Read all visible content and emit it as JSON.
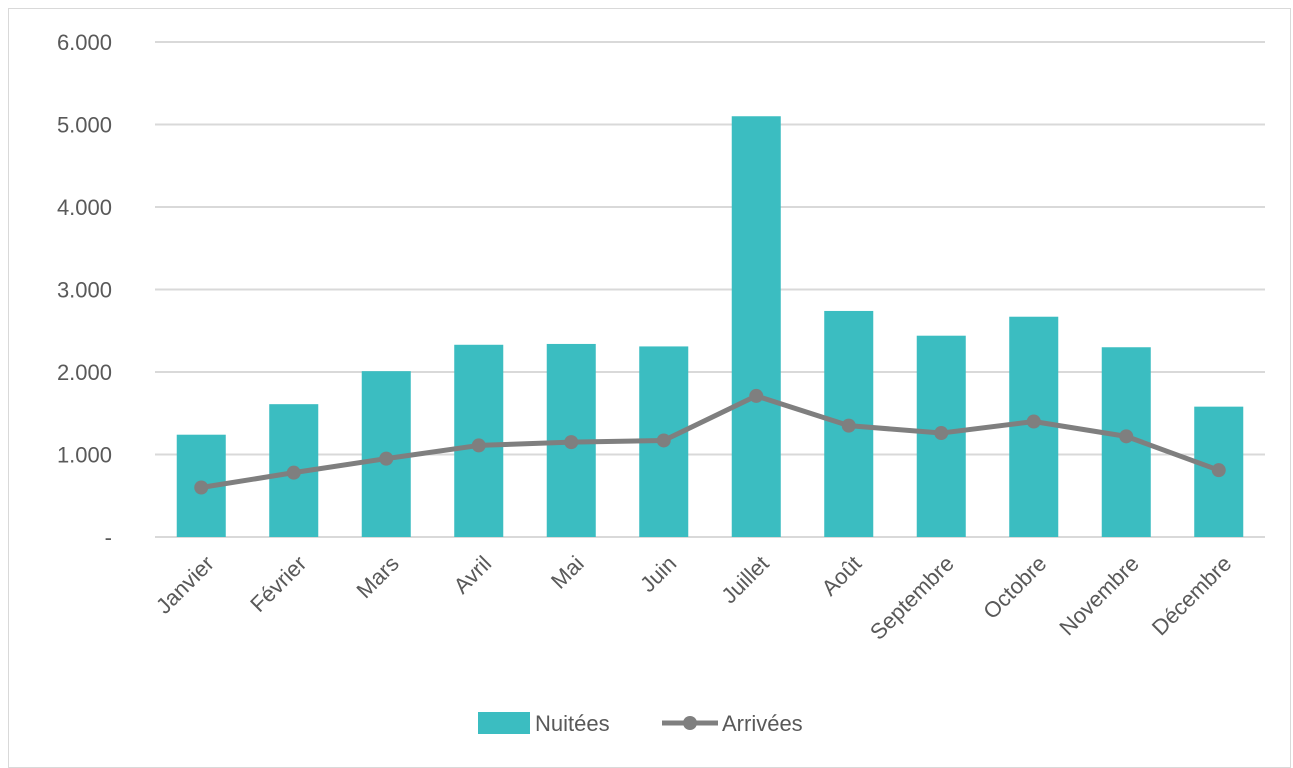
{
  "chart_data": {
    "type": "bar",
    "categories": [
      "Janvier",
      "Février",
      "Mars",
      "Avril",
      "Mai",
      "Juin",
      "Juillet",
      "Août",
      "Septembre",
      "Octobre",
      "Novembre",
      "Décembre"
    ],
    "series": [
      {
        "name": "Nuitées",
        "type": "bar",
        "color": "#3bbdc1",
        "values": [
          1240,
          1610,
          2010,
          2330,
          2340,
          2310,
          5100,
          2740,
          2440,
          2670,
          2300,
          1580
        ]
      },
      {
        "name": "Arrivées",
        "type": "line",
        "color": "#7f7f7f",
        "values": [
          600,
          780,
          950,
          1110,
          1150,
          1170,
          1710,
          1350,
          1260,
          1400,
          1220,
          810
        ]
      }
    ],
    "ylim": [
      0,
      6000
    ],
    "yticks": [
      0,
      1000,
      2000,
      3000,
      4000,
      5000,
      6000
    ],
    "ytick_labels": [
      "-",
      "1.000",
      "2.000",
      "3.000",
      "4.000",
      "5.000",
      "6.000"
    ],
    "grid": true,
    "legend_position": "bottom",
    "title": "",
    "xlabel": "",
    "ylabel": ""
  }
}
